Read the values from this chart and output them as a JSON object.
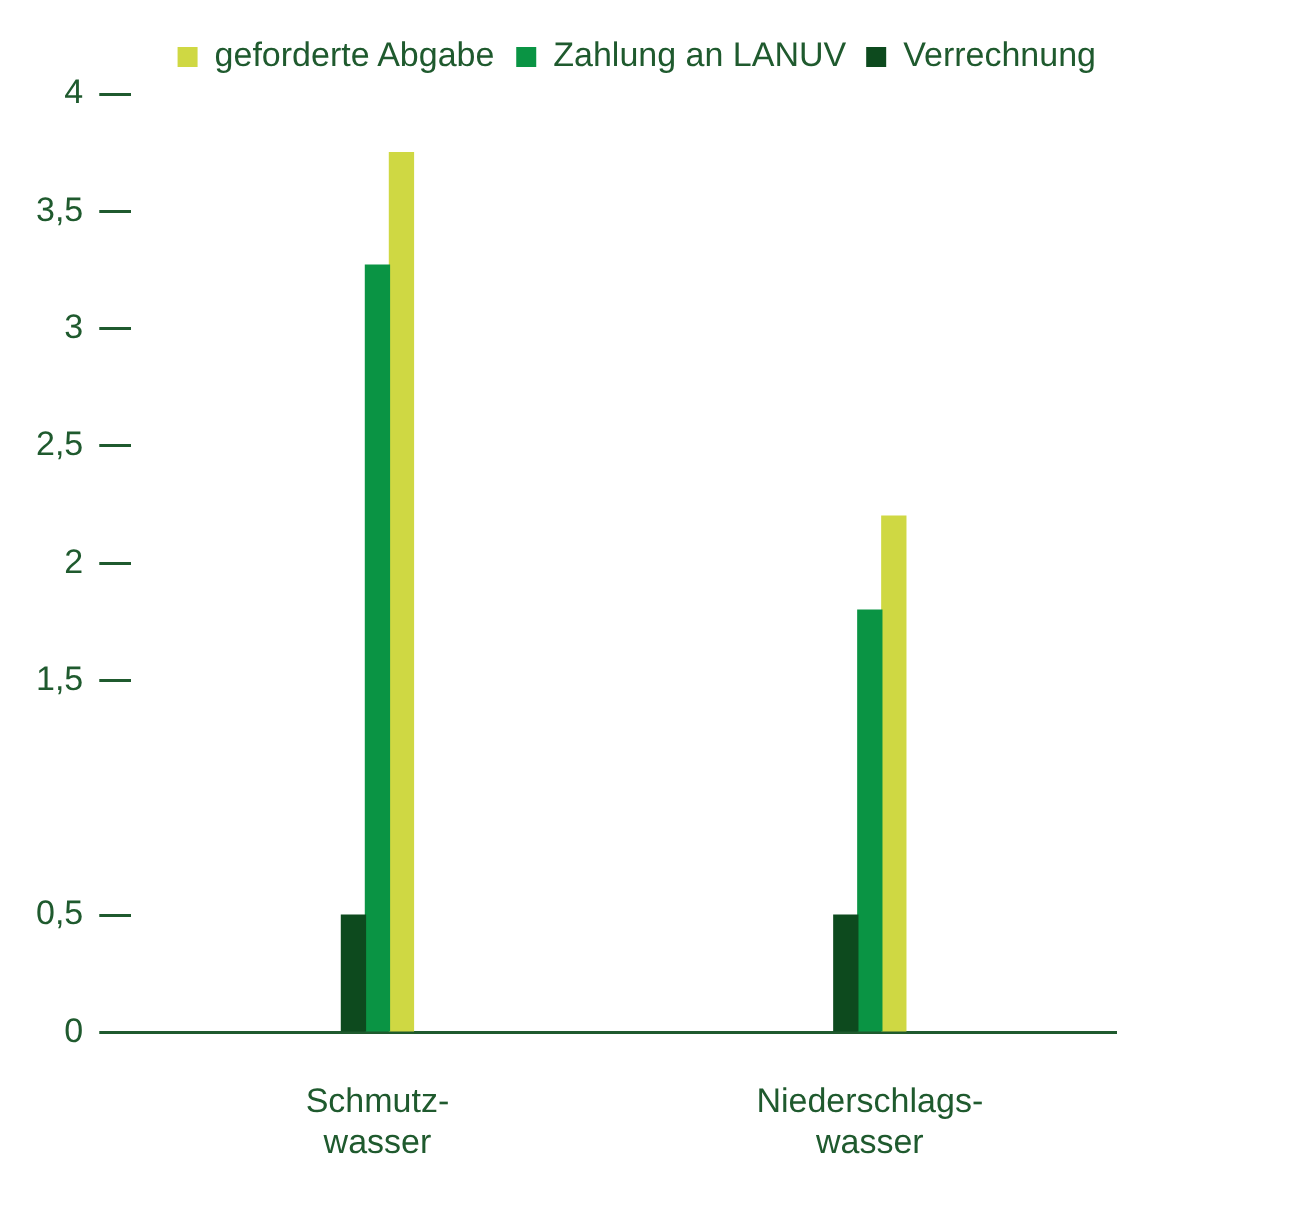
{
  "chart_data": {
    "type": "bar",
    "categories": [
      "Schmutz-\nwasser",
      "Niederschlags-\nwasser"
    ],
    "series": [
      {
        "name": "Verrechnung",
        "color": "#0d4a1e",
        "values": [
          0.5,
          0.5
        ]
      },
      {
        "name": "Zahlung an LANUV",
        "color": "#0a9444",
        "values": [
          3.27,
          1.8
        ]
      },
      {
        "name": "geforderte Abgabe",
        "color": "#cfd843",
        "values": [
          3.75,
          2.2
        ]
      }
    ],
    "ylim": [
      0,
      4
    ],
    "yticks": [
      0,
      {
        "value": 0.5,
        "label": "0,5"
      },
      {
        "value": 1.5,
        "label": "1,5"
      },
      2,
      {
        "value": 2.5,
        "label": "2,5"
      },
      3,
      {
        "value": 3.5,
        "label": "3,5"
      },
      4
    ],
    "grid": false,
    "legend": "top right"
  }
}
